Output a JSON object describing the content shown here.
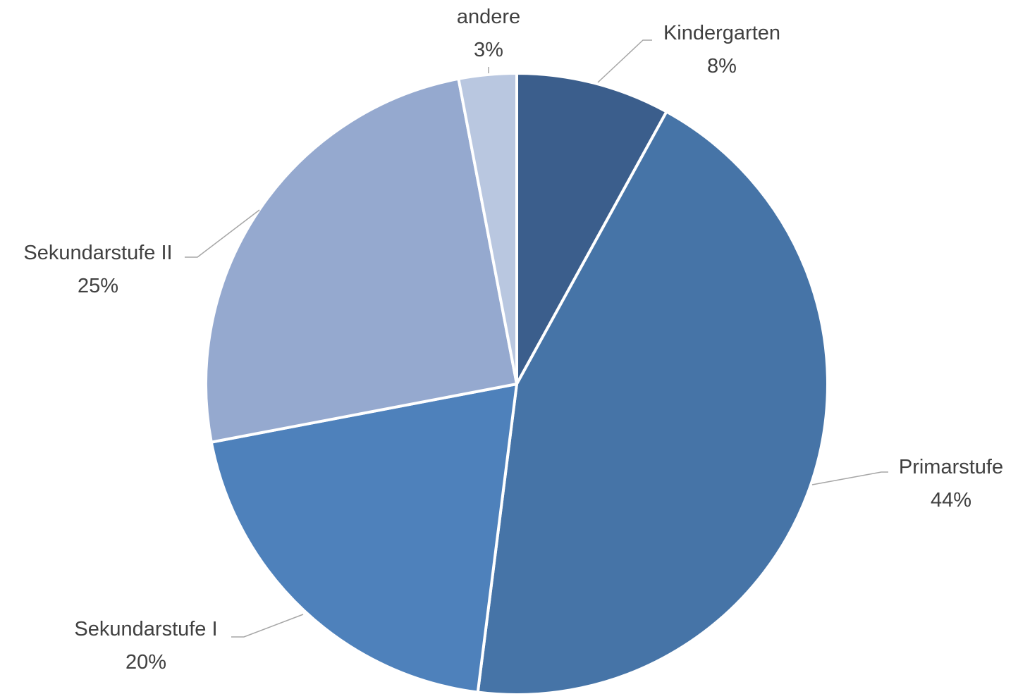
{
  "chart_data": {
    "type": "pie",
    "start_angle_deg": 0,
    "direction": "clockwise",
    "slices": [
      {
        "label": "Kindergarten",
        "value": 8,
        "percent_label": "8%",
        "color": "#3b5e8c"
      },
      {
        "label": "Primarstufe",
        "value": 44,
        "percent_label": "44%",
        "color": "#4674a7"
      },
      {
        "label": "Sekundarstufe I",
        "value": 20,
        "percent_label": "20%",
        "color": "#4e81bb"
      },
      {
        "label": "Sekundarstufe II",
        "value": 25,
        "percent_label": "25%",
        "color": "#95a9cf"
      },
      {
        "label": "andere",
        "value": 3,
        "percent_label": "3%",
        "color": "#b9c7e0"
      }
    ]
  }
}
